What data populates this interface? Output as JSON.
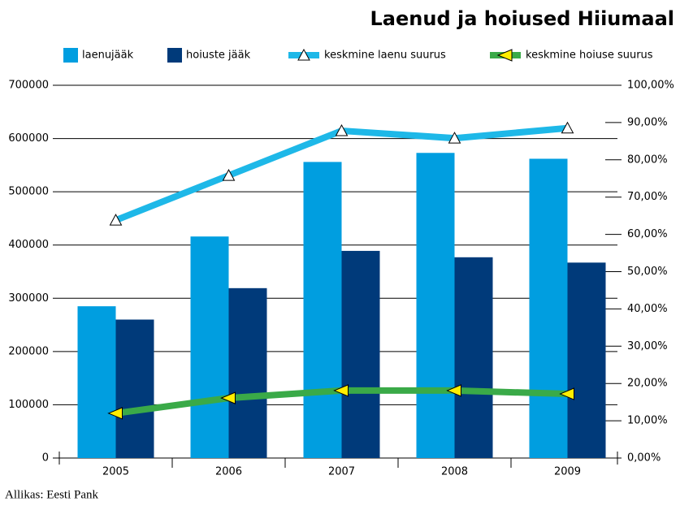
{
  "chart_data": {
    "type": "bar",
    "title": "Laenud ja hoiused Hiiumaal",
    "source": "Allikas: Eesti Pank",
    "categories": [
      "2005",
      "2006",
      "2007",
      "2008",
      "2009"
    ],
    "series": [
      {
        "name": "laenujääk",
        "type": "bar",
        "color": "#009ee0",
        "values": [
          285000,
          416000,
          556000,
          573000,
          562000
        ]
      },
      {
        "name": "hoiuste jääk",
        "type": "bar",
        "color": "#003a7a",
        "values": [
          260000,
          319000,
          389000,
          377000,
          367000
        ]
      },
      {
        "name": "keskmine laenu suurus",
        "type": "line",
        "axis": "y2",
        "color": "#1eb8e8",
        "values": [
          63.8,
          75.8,
          87.8,
          85.8,
          88.5
        ]
      },
      {
        "name": "keskmine hoiuse suurus",
        "type": "line",
        "axis": "y2",
        "color": "#3aaa48",
        "values": [
          12.0,
          16.1,
          18.1,
          18.1,
          17.2
        ]
      }
    ],
    "ylim": [
      0,
      700000
    ],
    "yticks": [
      0,
      100000,
      200000,
      300000,
      400000,
      500000,
      600000,
      700000
    ],
    "y2lim": [
      0,
      100
    ],
    "y2ticks": [
      {
        "value": 0,
        "label": "0,00%"
      },
      {
        "value": 10,
        "label": "10,00%"
      },
      {
        "value": 20,
        "label": "20,00%"
      },
      {
        "value": 30,
        "label": "30,00%"
      },
      {
        "value": 40,
        "label": "40,00%"
      },
      {
        "value": 50,
        "label": "50,00%"
      },
      {
        "value": 60,
        "label": "60,00%"
      },
      {
        "value": 70,
        "label": "70,00%"
      },
      {
        "value": 80,
        "label": "80,00%"
      },
      {
        "value": 90,
        "label": "90,00%"
      },
      {
        "value": 100,
        "label": "100,00%"
      }
    ],
    "grid": true
  }
}
